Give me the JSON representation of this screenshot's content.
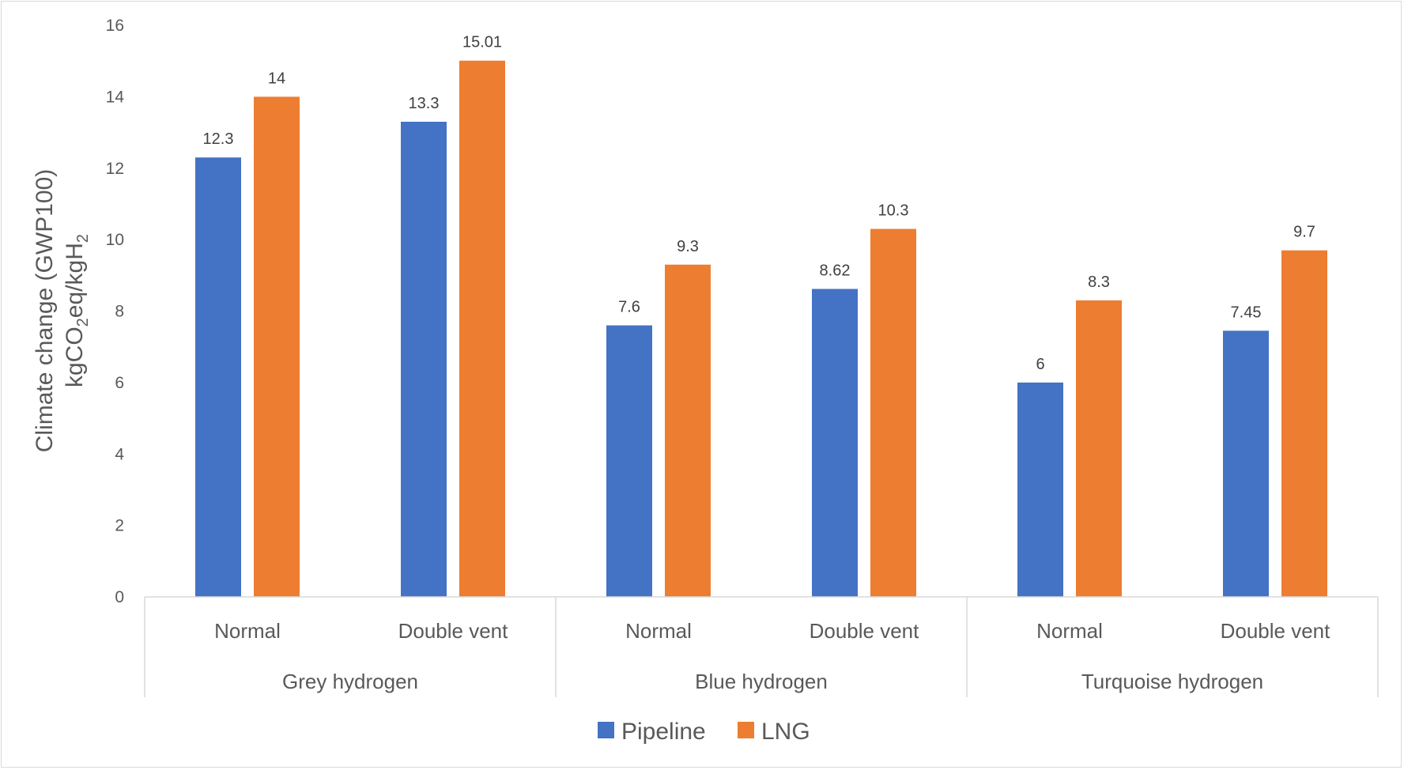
{
  "chart_data": {
    "type": "bar",
    "ylabel_line1": "Climate change (GWP100)",
    "ylabel_line2_parts": [
      "kgCO",
      "2",
      "eq/kgH",
      "2"
    ],
    "ylim": [
      0,
      16
    ],
    "yticks": [
      "0",
      "2",
      "4",
      "6",
      "8",
      "10",
      "12",
      "14",
      "16"
    ],
    "groups": [
      {
        "label": "Grey hydrogen",
        "subcategories": [
          "Normal",
          "Double vent"
        ]
      },
      {
        "label": "Blue hydrogen",
        "subcategories": [
          "Normal",
          "Double vent"
        ]
      },
      {
        "label": "Turquoise hydrogen",
        "subcategories": [
          "Normal",
          "Double vent"
        ]
      }
    ],
    "series": [
      {
        "name": "Pipeline",
        "color": "#4472c4",
        "values": [
          12.3,
          13.3,
          7.6,
          8.62,
          6,
          7.45
        ],
        "labels": [
          "12.3",
          "13.3",
          "7.6",
          "8.62",
          "6",
          "7.45"
        ]
      },
      {
        "name": "LNG",
        "color": "#ed7d31",
        "values": [
          14,
          15.01,
          9.3,
          10.3,
          8.3,
          9.7
        ],
        "labels": [
          "14",
          "15.01",
          "9.3",
          "10.3",
          "8.3",
          "9.7"
        ]
      }
    ],
    "grid": false,
    "legend_position": "bottom"
  }
}
